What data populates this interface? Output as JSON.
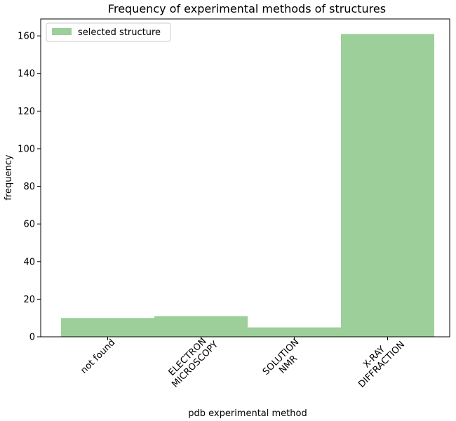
{
  "chart_data": {
    "type": "bar",
    "title": "Frequency of experimental methods of structures",
    "xlabel": "pdb experimental method",
    "ylabel": "frequency",
    "categories": [
      [
        "not found"
      ],
      [
        "ELECTRON",
        "MICROSCOPY"
      ],
      [
        "SOLUTION",
        "NMR"
      ],
      [
        "X-RAY",
        "DIFFRACTION"
      ]
    ],
    "series": [
      {
        "name": "selected structure",
        "values": [
          10,
          11,
          5,
          161
        ],
        "color": "#9ccf9a"
      }
    ],
    "ylim": [
      0,
      169
    ],
    "yticks": [
      0,
      20,
      40,
      60,
      80,
      100,
      120,
      140,
      160
    ],
    "grid": false,
    "legend_position": "top-left"
  }
}
